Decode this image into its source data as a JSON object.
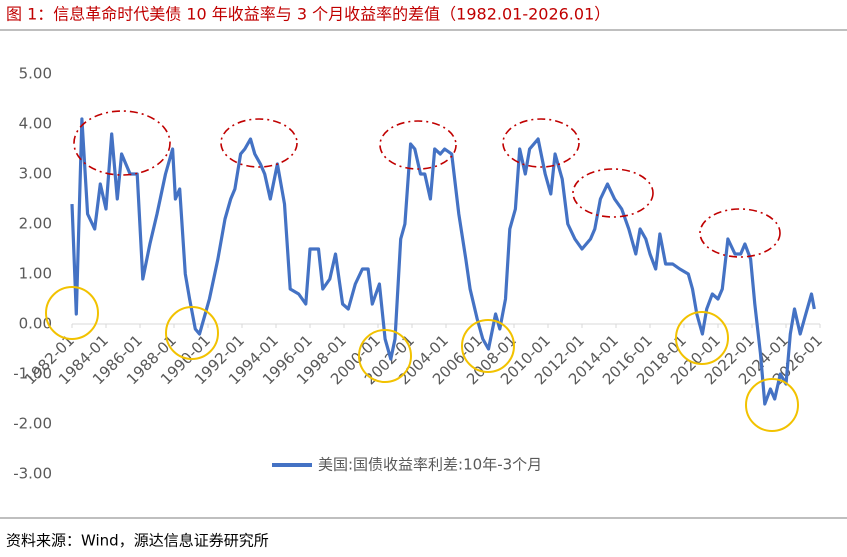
{
  "chart_data": {
    "type": "line",
    "title": "图 1：信息革命时代美债 10 年收益率与 3 个月收益率的差值（1982.01-2026.01）",
    "source": "资料来源：Wind，源达信息证券研究所",
    "x": [
      "1982-01",
      "1982-04",
      "1982-08",
      "1982-12",
      "1983-05",
      "1983-09",
      "1984-01",
      "1984-05",
      "1984-09",
      "1984-12",
      "1985-06",
      "1985-11",
      "1986-03",
      "1986-08",
      "1987-01",
      "1987-07",
      "1987-12",
      "1988-02",
      "1988-05",
      "1988-09",
      "1988-12",
      "1989-04",
      "1989-07",
      "1989-11",
      "1990-02",
      "1990-08",
      "1991-01",
      "1991-05",
      "1991-08",
      "1991-12",
      "1992-03",
      "1992-07",
      "1992-10",
      "1993-02",
      "1993-05",
      "1993-09",
      "1994-02",
      "1994-07",
      "1994-11",
      "1995-05",
      "1995-10",
      "1996-01",
      "1996-07",
      "1996-10",
      "1997-03",
      "1997-07",
      "1997-12",
      "1998-04",
      "1998-09",
      "1999-02",
      "1999-06",
      "1999-09",
      "2000-02",
      "2000-06",
      "2000-10",
      "2001-01",
      "2001-05",
      "2001-08",
      "2001-12",
      "2002-03",
      "2002-07",
      "2002-10",
      "2003-02",
      "2003-05",
      "2003-09",
      "2003-12",
      "2004-05",
      "2004-10",
      "2005-03",
      "2005-06",
      "2005-11",
      "2006-03",
      "2006-07",
      "2006-12",
      "2007-03",
      "2007-07",
      "2007-10",
      "2008-02",
      "2008-05",
      "2008-09",
      "2008-12",
      "2009-06",
      "2009-11",
      "2010-03",
      "2010-06",
      "2010-11",
      "2011-03",
      "2011-08",
      "2012-01",
      "2012-07",
      "2012-10",
      "2013-02",
      "2013-07",
      "2013-12",
      "2014-05",
      "2014-10",
      "2015-03",
      "2015-06",
      "2015-10",
      "2016-01",
      "2016-05",
      "2016-08",
      "2016-12",
      "2017-05",
      "2017-10",
      "2018-04",
      "2018-07",
      "2018-10",
      "2019-02",
      "2019-05",
      "2019-09",
      "2020-01",
      "2020-04",
      "2020-08",
      "2021-01",
      "2021-05",
      "2021-08",
      "2021-12",
      "2022-03",
      "2022-07",
      "2022-10",
      "2023-02",
      "2023-05",
      "2023-09",
      "2024-01",
      "2024-04",
      "2024-07",
      "2024-11",
      "2025-03",
      "2025-07",
      "2025-09"
    ],
    "series": [
      {
        "name": "美国:国债收益率利差:10年-3个月",
        "color": "#4472c4",
        "values": [
          2.4,
          0.2,
          4.1,
          2.2,
          1.9,
          2.8,
          2.3,
          3.8,
          2.5,
          3.4,
          3.0,
          3.0,
          0.9,
          1.6,
          2.2,
          3.0,
          3.5,
          2.5,
          2.7,
          1.0,
          0.5,
          -0.1,
          -0.2,
          0.2,
          0.5,
          1.3,
          2.1,
          2.5,
          2.7,
          3.4,
          3.5,
          3.7,
          3.4,
          3.2,
          3.0,
          2.5,
          3.2,
          2.4,
          0.7,
          0.6,
          0.4,
          1.5,
          1.5,
          0.7,
          0.9,
          1.4,
          0.4,
          0.3,
          0.8,
          1.1,
          1.1,
          0.4,
          0.8,
          -0.3,
          -0.7,
          -0.3,
          1.7,
          2.0,
          3.6,
          3.5,
          3.0,
          3.0,
          2.5,
          3.5,
          3.4,
          3.5,
          3.4,
          2.2,
          1.3,
          0.7,
          0.1,
          -0.3,
          -0.5,
          0.2,
          -0.1,
          0.5,
          1.9,
          2.3,
          3.5,
          3.0,
          3.5,
          3.7,
          3.0,
          2.6,
          3.4,
          2.9,
          2.0,
          1.7,
          1.5,
          1.7,
          1.9,
          2.5,
          2.8,
          2.5,
          2.3,
          1.9,
          1.4,
          1.9,
          1.7,
          1.4,
          1.1,
          1.8,
          1.2,
          1.2,
          1.1,
          1.0,
          0.7,
          0.2,
          -0.2,
          0.3,
          0.6,
          0.5,
          0.7,
          1.7,
          1.4,
          1.4,
          1.6,
          1.3,
          0.4,
          -0.6,
          -1.6,
          -1.3,
          -1.5,
          -1.0,
          -1.2,
          -0.2,
          0.3,
          -0.2,
          0.2,
          0.6,
          0.3
        ]
      }
    ],
    "xlim": [
      "1982-01",
      "2026-01"
    ],
    "xticks": [
      "1982-01",
      "1984-01",
      "1986-01",
      "1988-01",
      "1990-01",
      "1992-01",
      "1994-01",
      "1996-01",
      "1998-01",
      "2000-01",
      "2002-01",
      "2004-01",
      "2006-01",
      "2008-01",
      "2010-01",
      "2012-01",
      "2014-01",
      "2016-01",
      "2018-01",
      "2020-01",
      "2022-01",
      "2024-01",
      "2026-01"
    ],
    "ylim": [
      -3,
      5
    ],
    "yticks": [
      {
        "value": 5,
        "label": "5.00"
      },
      {
        "value": 4,
        "label": "4.00"
      },
      {
        "value": 3,
        "label": "3.00"
      },
      {
        "value": 2,
        "label": "2.00"
      },
      {
        "value": 1,
        "label": "1.00"
      },
      {
        "value": 0,
        "label": "0.00"
      },
      {
        "value": -1,
        "label": "-1.00"
      },
      {
        "value": -2,
        "label": "-2.00"
      },
      {
        "value": -3,
        "label": "-3.00"
      }
    ],
    "grid": false,
    "legend": "bottom"
  }
}
